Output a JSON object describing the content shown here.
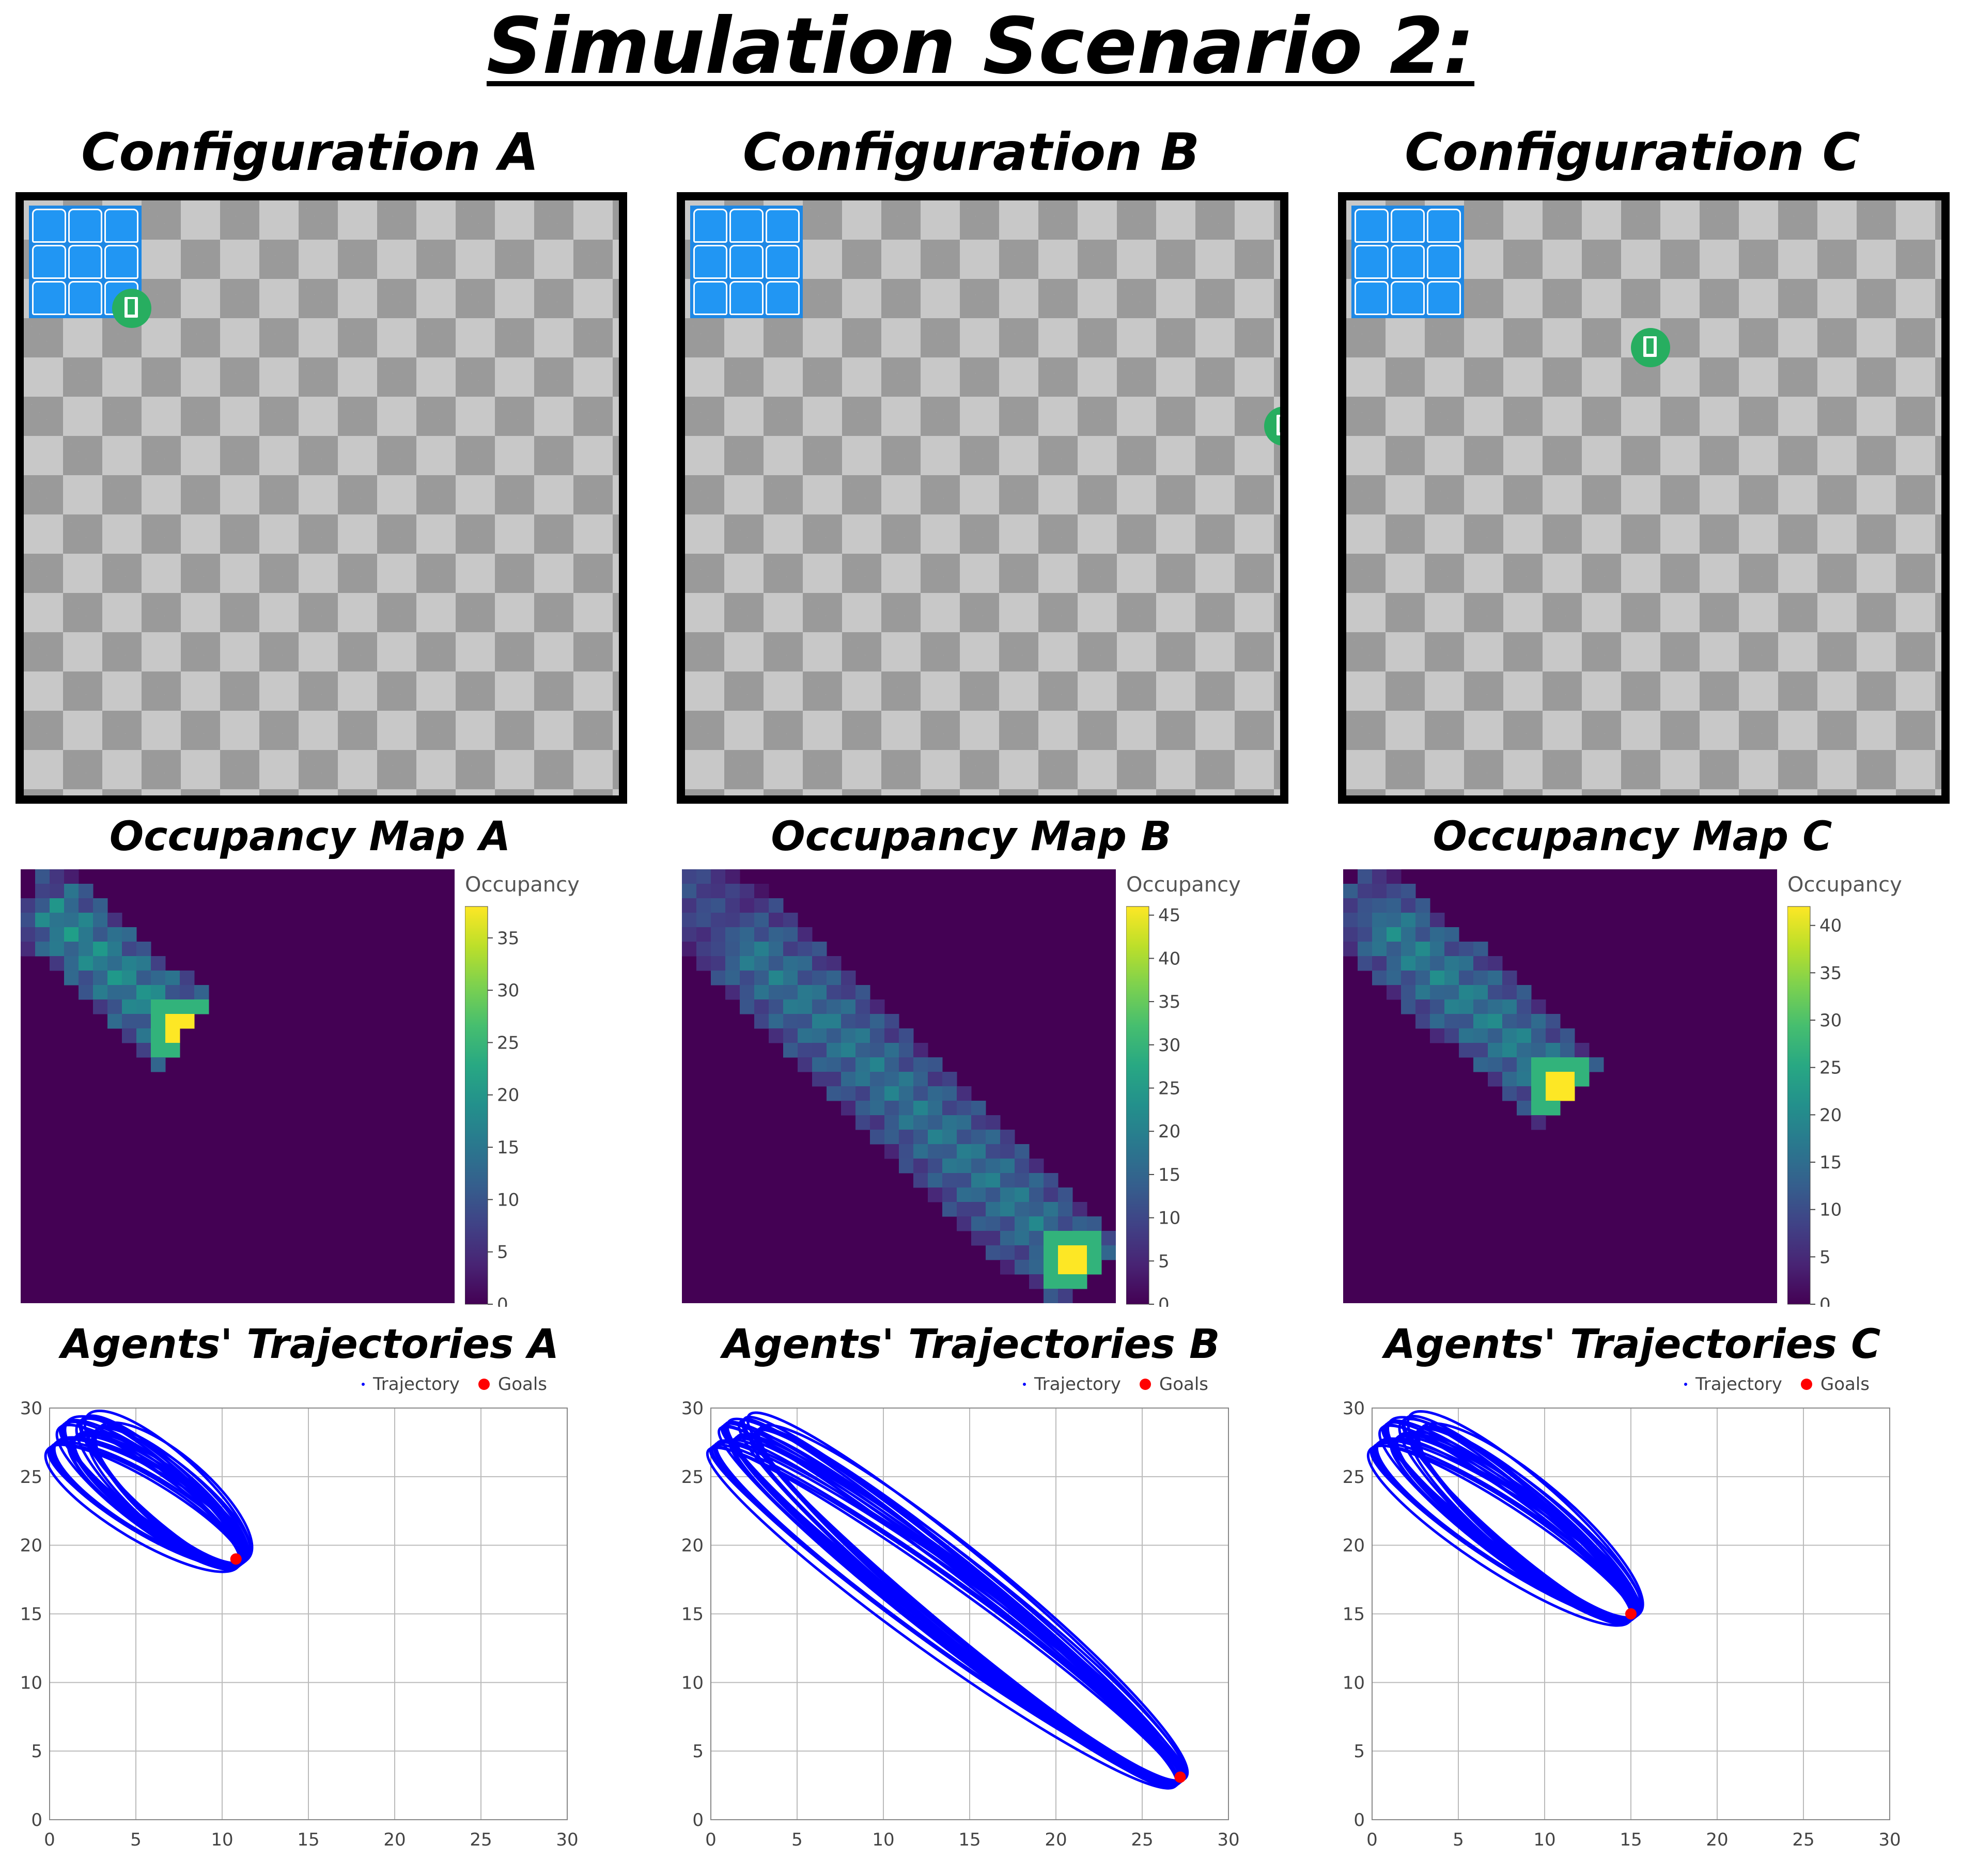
{
  "title": "Simulation Scenario 2:",
  "configurations": [
    {
      "id": "A",
      "title": "Configuration A",
      "goal_cell": [
        5,
        5
      ]
    },
    {
      "id": "B",
      "title": "Configuration B",
      "goal_cell": [
        30,
        11
      ]
    },
    {
      "id": "C",
      "title": "Configuration C",
      "goal_cell": [
        15,
        7
      ]
    }
  ],
  "occupancy_maps": [
    {
      "id": "A",
      "title": "Occupancy Map A",
      "legend_title": "Occupancy",
      "ticks": [
        0,
        5,
        10,
        15,
        20,
        25,
        30,
        35
      ],
      "max": 38
    },
    {
      "id": "B",
      "title": "Occupancy Map B",
      "legend_title": "Occupancy",
      "ticks": [
        0,
        5,
        10,
        15,
        20,
        25,
        30,
        35,
        40,
        45
      ],
      "max": 46
    },
    {
      "id": "C",
      "title": "Occupancy Map C",
      "legend_title": "Occupancy",
      "ticks": [
        0,
        5,
        10,
        15,
        20,
        25,
        30,
        35,
        40
      ],
      "max": 42
    }
  ],
  "trajectory_legend": {
    "trajectory": "Trajectory",
    "goals": "Goals"
  },
  "colors": {
    "trajectory": "#0000ff",
    "goal": "#ff0000",
    "heat_low": "#440154",
    "heat_high": "#fde725"
  },
  "chart_data": [
    {
      "type": "scatter",
      "title": "Agents' Trajectories A",
      "xlim": [
        0,
        30
      ],
      "ylim": [
        0,
        30
      ],
      "xticks": [
        0,
        5,
        10,
        15,
        20,
        25,
        30
      ],
      "yticks": [
        0,
        5,
        10,
        15,
        20,
        25,
        30
      ],
      "grid": true,
      "legend": "top-right",
      "series": [
        {
          "name": "Trajectory",
          "region": {
            "start": [
              1,
              28
            ],
            "end": [
              11,
              19
            ],
            "width": 6
          }
        },
        {
          "name": "Goals",
          "points": [
            [
              10.8,
              19
            ]
          ]
        }
      ]
    },
    {
      "type": "scatter",
      "title": "Agents' Trajectories B",
      "xlim": [
        0,
        30
      ],
      "ylim": [
        0,
        30
      ],
      "xticks": [
        0,
        5,
        10,
        15,
        20,
        25,
        30
      ],
      "yticks": [
        0,
        5,
        10,
        15,
        20,
        25,
        30
      ],
      "grid": true,
      "legend": "top-right",
      "series": [
        {
          "name": "Trajectory",
          "region": {
            "start": [
              1,
              28
            ],
            "end": [
              27,
              3
            ],
            "width": 7
          }
        },
        {
          "name": "Goals",
          "points": [
            [
              27.2,
              3.1
            ]
          ]
        }
      ]
    },
    {
      "type": "scatter",
      "title": "Agents' Trajectories C",
      "xlim": [
        0,
        30
      ],
      "ylim": [
        0,
        30
      ],
      "xticks": [
        0,
        5,
        10,
        15,
        20,
        25,
        30
      ],
      "yticks": [
        0,
        5,
        10,
        15,
        20,
        25,
        30
      ],
      "grid": true,
      "legend": "top-right",
      "series": [
        {
          "name": "Trajectory",
          "region": {
            "start": [
              1,
              28
            ],
            "end": [
              15,
              15
            ],
            "width": 6.5
          }
        },
        {
          "name": "Goals",
          "points": [
            [
              15,
              15
            ]
          ]
        }
      ]
    }
  ]
}
